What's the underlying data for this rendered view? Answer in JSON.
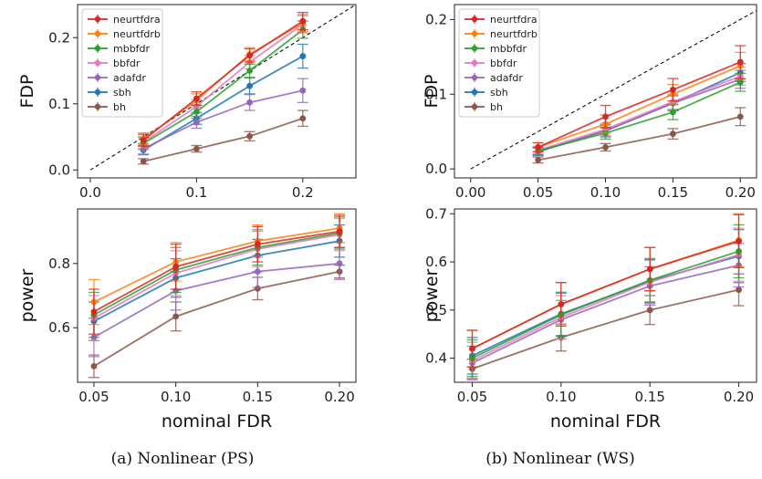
{
  "captions": [
    "(a) Nonlinear (PS)",
    "(b) Nonlinear (WS)"
  ],
  "colors": {
    "neurtfdra": "#d62728",
    "neurtfdrb": "#ff7f0e",
    "mbbfdr": "#2ca02c",
    "bbfdr": "#e377c2",
    "adafdr": "#9467bd",
    "sbh": "#1f77b4",
    "bh": "#8c564b"
  },
  "chart_data": [
    {
      "type": "line",
      "panel": "PS-FDP",
      "xlabel": "",
      "ylabel": "FDP",
      "xlim": [
        -0.012,
        0.25
      ],
      "ylim": [
        -0.012,
        0.25
      ],
      "xticks": [
        "0.0",
        "0.1",
        "0.2"
      ],
      "yticks": [
        "0.0",
        "0.1",
        "0.2"
      ],
      "diagonal": true,
      "legend": "top-left",
      "x": [
        0.05,
        0.1,
        0.15,
        0.2
      ],
      "series": [
        {
          "name": "neurtfdra",
          "values": [
            0.045,
            0.108,
            0.173,
            0.225
          ],
          "err": [
            0.009,
            0.01,
            0.01,
            0.013
          ]
        },
        {
          "name": "neurtfdrb",
          "values": [
            0.047,
            0.105,
            0.175,
            0.222
          ],
          "err": [
            0.009,
            0.01,
            0.01,
            0.013
          ]
        },
        {
          "name": "mbbfdr",
          "values": [
            0.04,
            0.088,
            0.15,
            0.212
          ],
          "err": [
            0.009,
            0.01,
            0.01,
            0.013
          ]
        },
        {
          "name": "bbfdr",
          "values": [
            0.042,
            0.096,
            0.163,
            0.22
          ],
          "err": [
            0.009,
            0.01,
            0.01,
            0.013
          ]
        },
        {
          "name": "adafdr",
          "values": [
            0.032,
            0.072,
            0.102,
            0.12
          ],
          "err": [
            0.008,
            0.009,
            0.012,
            0.018
          ]
        },
        {
          "name": "sbh",
          "values": [
            0.03,
            0.078,
            0.127,
            0.172
          ],
          "err": [
            0.007,
            0.009,
            0.012,
            0.018
          ]
        },
        {
          "name": "bh",
          "values": [
            0.013,
            0.032,
            0.051,
            0.078
          ],
          "err": [
            0.004,
            0.005,
            0.007,
            0.012
          ]
        }
      ]
    },
    {
      "type": "line",
      "panel": "WS-FDP",
      "xlabel": "",
      "ylabel": "FDP",
      "xlim": [
        -0.012,
        0.212
      ],
      "ylim": [
        -0.012,
        0.22
      ],
      "xticks": [
        "0.00",
        "0.05",
        "0.10",
        "0.15",
        "0.20"
      ],
      "yticks": [
        "0.0",
        "0.1",
        "0.2"
      ],
      "diagonal": true,
      "legend": "top-left",
      "x": [
        0.05,
        0.1,
        0.15,
        0.2
      ],
      "series": [
        {
          "name": "neurtfdra",
          "values": [
            0.029,
            0.07,
            0.106,
            0.143
          ],
          "err": [
            0.006,
            0.015,
            0.015,
            0.022
          ]
        },
        {
          "name": "neurtfdrb",
          "values": [
            0.029,
            0.06,
            0.1,
            0.138
          ],
          "err": [
            0.006,
            0.012,
            0.013,
            0.018
          ]
        },
        {
          "name": "mbbfdr",
          "values": [
            0.024,
            0.048,
            0.076,
            0.116
          ],
          "err": [
            0.005,
            0.008,
            0.01,
            0.012
          ]
        },
        {
          "name": "bbfdr",
          "values": [
            0.025,
            0.053,
            0.09,
            0.124
          ],
          "err": [
            0.005,
            0.008,
            0.01,
            0.012
          ]
        },
        {
          "name": "adafdr",
          "values": [
            0.024,
            0.051,
            0.088,
            0.12
          ],
          "err": [
            0.005,
            0.008,
            0.01,
            0.012
          ]
        },
        {
          "name": "sbh",
          "values": [
            0.023,
            0.051,
            0.088,
            0.129
          ],
          "err": [
            0.005,
            0.008,
            0.01,
            0.012
          ]
        },
        {
          "name": "bh",
          "values": [
            0.012,
            0.029,
            0.047,
            0.07
          ],
          "err": [
            0.004,
            0.005,
            0.007,
            0.012
          ]
        }
      ]
    },
    {
      "type": "line",
      "panel": "PS-power",
      "xlabel": "nominal FDR",
      "ylabel": "power",
      "xlim": [
        0.04,
        0.21
      ],
      "ylim": [
        0.43,
        0.97
      ],
      "xticks": [
        "0.05",
        "0.10",
        "0.15",
        "0.20"
      ],
      "yticks": [
        "0.6",
        "0.8"
      ],
      "diagonal": false,
      "x": [
        0.05,
        0.1,
        0.15,
        0.2
      ],
      "series": [
        {
          "name": "neurtfdra",
          "values": [
            0.65,
            0.79,
            0.86,
            0.9
          ],
          "err": [
            0.07,
            0.07,
            0.055,
            0.05
          ]
        },
        {
          "name": "neurtfdrb",
          "values": [
            0.68,
            0.805,
            0.87,
            0.91
          ],
          "err": [
            0.07,
            0.06,
            0.05,
            0.045
          ]
        },
        {
          "name": "mbbfdr",
          "values": [
            0.64,
            0.78,
            0.85,
            0.895
          ],
          "err": [
            0.07,
            0.07,
            0.055,
            0.05
          ]
        },
        {
          "name": "bbfdr",
          "values": [
            0.63,
            0.77,
            0.845,
            0.89
          ],
          "err": [
            0.07,
            0.07,
            0.055,
            0.05
          ]
        },
        {
          "name": "adafdr",
          "values": [
            0.57,
            0.715,
            0.775,
            0.8
          ],
          "err": [
            0.06,
            0.06,
            0.05,
            0.05
          ]
        },
        {
          "name": "sbh",
          "values": [
            0.62,
            0.755,
            0.825,
            0.87
          ],
          "err": [
            0.06,
            0.06,
            0.05,
            0.05
          ]
        },
        {
          "name": "bh",
          "values": [
            0.48,
            0.635,
            0.722,
            0.775
          ],
          "err": [
            0.035,
            0.045,
            0.035,
            0.02
          ]
        }
      ]
    },
    {
      "type": "line",
      "panel": "WS-power",
      "xlabel": "nominal FDR",
      "ylabel": "power",
      "xlim": [
        0.04,
        0.21
      ],
      "ylim": [
        0.35,
        0.71
      ],
      "xticks": [
        "0.05",
        "0.10",
        "0.15",
        "0.20"
      ],
      "yticks": [
        "0.4",
        "0.5",
        "0.6",
        "0.7"
      ],
      "diagonal": false,
      "x": [
        0.05,
        0.1,
        0.15,
        0.2
      ],
      "series": [
        {
          "name": "neurtfdra",
          "values": [
            0.42,
            0.512,
            0.585,
            0.643
          ],
          "err": [
            0.038,
            0.045,
            0.045,
            0.055
          ]
        },
        {
          "name": "neurtfdrb",
          "values": [
            0.42,
            0.512,
            0.585,
            0.645
          ],
          "err": [
            0.038,
            0.045,
            0.045,
            0.055
          ]
        },
        {
          "name": "mbbfdr",
          "values": [
            0.4,
            0.49,
            0.562,
            0.622
          ],
          "err": [
            0.038,
            0.045,
            0.045,
            0.055
          ]
        },
        {
          "name": "bbfdr",
          "values": [
            0.395,
            0.485,
            0.558,
            0.615
          ],
          "err": [
            0.038,
            0.045,
            0.045,
            0.055
          ]
        },
        {
          "name": "adafdr",
          "values": [
            0.39,
            0.48,
            0.55,
            0.593
          ],
          "err": [
            0.035,
            0.04,
            0.04,
            0.045
          ]
        },
        {
          "name": "sbh",
          "values": [
            0.405,
            0.492,
            0.56,
            0.612
          ],
          "err": [
            0.038,
            0.045,
            0.045,
            0.055
          ]
        },
        {
          "name": "bh",
          "values": [
            0.378,
            0.443,
            0.5,
            0.542
          ],
          "err": [
            0.02,
            0.028,
            0.03,
            0.033
          ]
        }
      ]
    }
  ]
}
